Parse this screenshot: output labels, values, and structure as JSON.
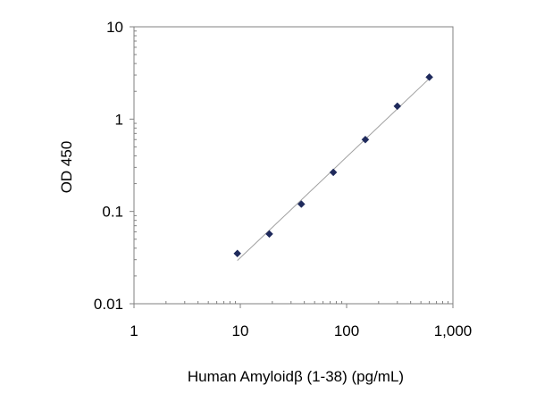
{
  "chart_data": {
    "type": "scatter",
    "title": "",
    "xlabel": "Human Amyloidβ (1-38) (pg/mL)",
    "ylabel": "OD 450",
    "x_scale": "log",
    "y_scale": "log",
    "xlim": [
      1,
      1000
    ],
    "ylim": [
      0.01,
      10
    ],
    "x_ticks": [
      {
        "value": 1,
        "label": "1"
      },
      {
        "value": 10,
        "label": "10"
      },
      {
        "value": 100,
        "label": "100"
      },
      {
        "value": 1000,
        "label": "1,000"
      }
    ],
    "y_ticks": [
      {
        "value": 10,
        "label": "10"
      },
      {
        "value": 1,
        "label": "1"
      },
      {
        "value": 0.1,
        "label": "0.1"
      },
      {
        "value": 0.01,
        "label": "0.01"
      }
    ],
    "grid": false,
    "legend": "none",
    "marker": "diamond",
    "marker_color": "#1f2a5c",
    "trendline_color": "#a0a0a0",
    "trendline": true,
    "points": [
      {
        "x": 9.38,
        "y": 0.035
      },
      {
        "x": 18.75,
        "y": 0.057
      },
      {
        "x": 37.5,
        "y": 0.12
      },
      {
        "x": 75,
        "y": 0.265
      },
      {
        "x": 150,
        "y": 0.6
      },
      {
        "x": 300,
        "y": 1.38
      },
      {
        "x": 600,
        "y": 2.85
      }
    ]
  }
}
